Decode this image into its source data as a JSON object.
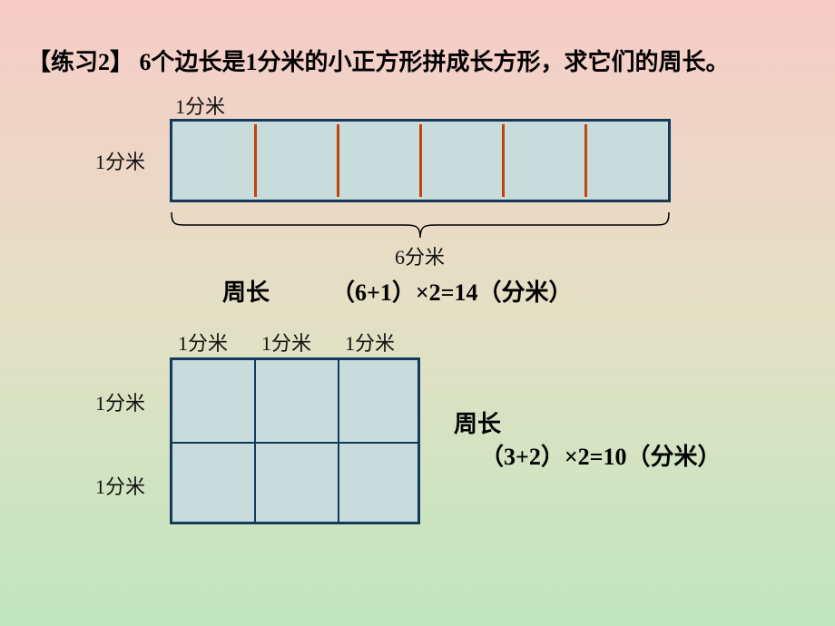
{
  "background": {
    "gradient_top": "#F7CCC8",
    "gradient_mid": "#E4E0C4",
    "gradient_bottom": "#C0E7BE"
  },
  "title": {
    "prefix": "【练习2】",
    "text": " 6个边长是1分米的小正方形拼成长方形，求它们的周长。"
  },
  "rect1": {
    "cols": 6,
    "rows": 1,
    "cell_fill": "#C7DCDB",
    "outer_border_color": "#14395B",
    "outer_border_width": 3,
    "inner_divider_color": "#C1440E",
    "inner_divider_width": 3,
    "top_label": "1分米",
    "left_label": "1分米",
    "brace_label": "6分米",
    "brace_color": "#000000",
    "formula_label": "周长",
    "formula_value": "（6+1）×2=14（分米）"
  },
  "rect2": {
    "cols": 3,
    "rows": 2,
    "cell_fill": "#C7DCDB",
    "outer_border_color": "#14395B",
    "outer_border_width": 3,
    "inner_line_color": "#14395B",
    "inner_line_width": 2,
    "top_labels": [
      "1分米",
      "1分米",
      "1分米"
    ],
    "left_labels": [
      "1分米",
      "1分米"
    ],
    "formula_label": "周长",
    "formula_value": "（3+2）×2=10（分米）"
  }
}
